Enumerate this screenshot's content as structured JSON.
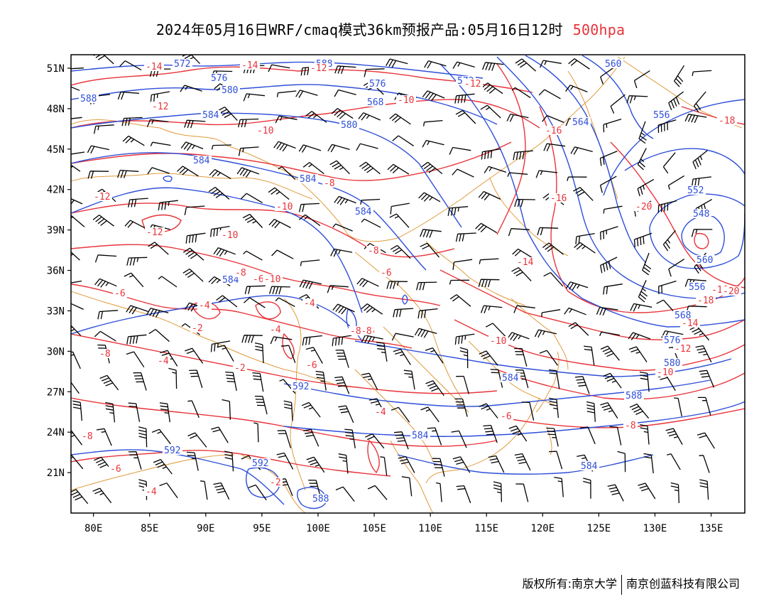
{
  "title": {
    "text": "2024年05月16日WRF/cmaq模式36km预报产品:05月16日12时",
    "level": "500hpa",
    "level_color": "#e8343a"
  },
  "footer": {
    "copyright": "版权所有:南京大学",
    "company": "南京创蓝科技有限公司"
  },
  "map": {
    "lon_range": [
      78,
      138
    ],
    "lat_range": [
      18,
      52
    ],
    "lat_ticks": [
      "51N",
      "48N",
      "45N",
      "42N",
      "39N",
      "36N",
      "33N",
      "30N",
      "27N",
      "24N",
      "21N"
    ],
    "lon_ticks": [
      "80E",
      "85E",
      "90E",
      "95E",
      "100E",
      "105E",
      "110E",
      "115E",
      "120E",
      "125E",
      "130E",
      "135E"
    ],
    "colors": {
      "height_contour": "#2e4fd8",
      "temperature_contour": "#e8343a",
      "boundary": "#e09a3c",
      "wind_barb": "#000000",
      "frame": "#000000"
    },
    "height_labels": [
      "588",
      "572",
      "576",
      "580",
      "584",
      "588",
      "584",
      "584",
      "576",
      "580",
      "584",
      "560",
      "564",
      "556",
      "552",
      "548",
      "560",
      "584",
      "576",
      "580",
      "584",
      "588",
      "592",
      "592",
      "592",
      "588",
      "584",
      "584",
      "568",
      "572",
      "568",
      "556"
    ],
    "temperature_labels": [
      "-14",
      "-14",
      "-12",
      "-12",
      "-10",
      "-12",
      "-10",
      "-16",
      "-16",
      "-18",
      "-20",
      "-10",
      "-12",
      "-8",
      "-10",
      "-16",
      "-8",
      "-8",
      "-6",
      "-6",
      "-4",
      "-4",
      "-2",
      "-4",
      "-6",
      "-4",
      "-6",
      "-8",
      "-6",
      "-8",
      "-8",
      "-4",
      "-2",
      "-6",
      "-10",
      "-12",
      "-10",
      "-14",
      "-16",
      "-18",
      "-20",
      "-14",
      "-12",
      "-10",
      "-8",
      "-8",
      "-6",
      "-4",
      "-2"
    ]
  }
}
